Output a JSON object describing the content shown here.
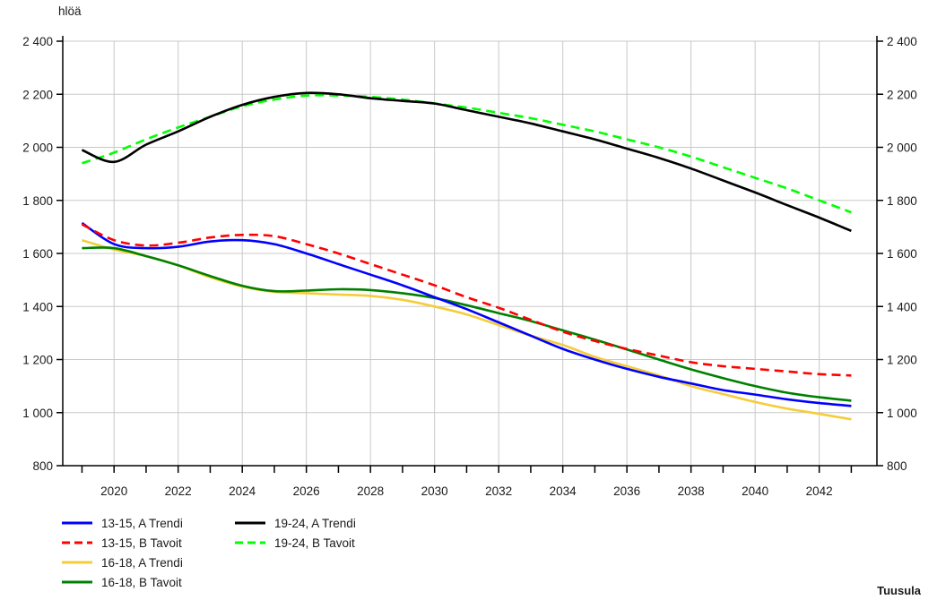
{
  "chart_data": {
    "type": "line",
    "unit_label": "hlöä",
    "source": "Tuusula",
    "x": [
      2019,
      2020,
      2021,
      2022,
      2023,
      2024,
      2025,
      2026,
      2027,
      2028,
      2029,
      2030,
      2031,
      2032,
      2033,
      2034,
      2035,
      2036,
      2037,
      2038,
      2039,
      2040,
      2041,
      2042,
      2043
    ],
    "xlim": [
      2018.4,
      2043.8
    ],
    "x_ticks": [
      "2020",
      "2022",
      "2024",
      "2026",
      "2028",
      "2030",
      "2032",
      "2034",
      "2036",
      "2038",
      "2040",
      "2042"
    ],
    "ylim": [
      800,
      2400
    ],
    "y_ticks": [
      "800",
      "1 000",
      "1 200",
      "1 400",
      "1 600",
      "1 800",
      "2 000",
      "2 200",
      "2 400"
    ],
    "grid": true,
    "legend_position": "bottom-left",
    "series": [
      {
        "name": "13-15, A Trendi",
        "color": "#0000ff",
        "dash": "solid",
        "values": [
          1715,
          1635,
          1620,
          1625,
          1645,
          1650,
          1635,
          1600,
          1560,
          1520,
          1480,
          1435,
          1390,
          1340,
          1290,
          1240,
          1200,
          1165,
          1135,
          1110,
          1085,
          1068,
          1050,
          1036,
          1025
        ]
      },
      {
        "name": "13-15, B Tavoit",
        "color": "#ff0000",
        "dash": "dashed",
        "values": [
          1710,
          1650,
          1630,
          1640,
          1660,
          1670,
          1665,
          1635,
          1600,
          1560,
          1520,
          1480,
          1435,
          1395,
          1350,
          1305,
          1270,
          1240,
          1215,
          1190,
          1175,
          1165,
          1155,
          1145,
          1140
        ]
      },
      {
        "name": "16-18, A Trendi",
        "color": "#f5cc3a",
        "dash": "solid",
        "values": [
          1650,
          1615,
          1590,
          1555,
          1510,
          1475,
          1455,
          1450,
          1445,
          1440,
          1425,
          1400,
          1370,
          1330,
          1290,
          1255,
          1210,
          1175,
          1140,
          1100,
          1070,
          1040,
          1015,
          995,
          975
        ]
      },
      {
        "name": "16-18, B Tavoit",
        "color": "#008000",
        "dash": "solid",
        "values": [
          1620,
          1620,
          1590,
          1555,
          1515,
          1478,
          1458,
          1460,
          1465,
          1462,
          1450,
          1432,
          1405,
          1375,
          1345,
          1310,
          1275,
          1238,
          1200,
          1163,
          1130,
          1100,
          1075,
          1058,
          1045
        ]
      },
      {
        "name": "19-24, A Trendi",
        "color": "#000000",
        "dash": "solid",
        "values": [
          1990,
          1945,
          2010,
          2060,
          2115,
          2160,
          2190,
          2205,
          2200,
          2185,
          2175,
          2165,
          2140,
          2115,
          2090,
          2060,
          2030,
          1995,
          1960,
          1920,
          1875,
          1830,
          1782,
          1735,
          1685
        ]
      },
      {
        "name": "19-24, B Tavoit",
        "color": "#00ff00",
        "dash": "dashed",
        "values": [
          1940,
          1980,
          2030,
          2075,
          2115,
          2155,
          2180,
          2195,
          2195,
          2190,
          2180,
          2165,
          2150,
          2130,
          2110,
          2085,
          2060,
          2030,
          2000,
          1965,
          1925,
          1885,
          1845,
          1800,
          1755
        ]
      }
    ]
  }
}
